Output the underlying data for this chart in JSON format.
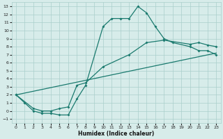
{
  "xlabel": "Humidex (Indice chaleur)",
  "line_color": "#1a7a6e",
  "bg_color": "#d7ecea",
  "grid_color": "#aacfcb",
  "xlim": [
    -0.5,
    23.5
  ],
  "ylim": [
    -1.5,
    13.5
  ],
  "xticks": [
    0,
    1,
    2,
    3,
    4,
    5,
    6,
    7,
    8,
    9,
    10,
    11,
    12,
    13,
    14,
    15,
    16,
    17,
    18,
    19,
    20,
    21,
    22,
    23
  ],
  "yticks": [
    -1,
    0,
    1,
    2,
    3,
    4,
    5,
    6,
    7,
    8,
    9,
    10,
    11,
    12,
    13
  ],
  "curve1_x": [
    0,
    1,
    2,
    3,
    4,
    5,
    6,
    7,
    8,
    10,
    11,
    12,
    13,
    14,
    15,
    16,
    17,
    18,
    20,
    21,
    22,
    23
  ],
  "curve1_y": [
    2.0,
    1.0,
    0.0,
    -0.3,
    -0.3,
    -0.5,
    -0.5,
    1.5,
    3.2,
    10.5,
    11.5,
    11.5,
    11.5,
    13.0,
    12.2,
    10.5,
    9.0,
    8.5,
    8.0,
    7.5,
    7.5,
    7.0
  ],
  "curve2_x": [
    0,
    2,
    3,
    4,
    5,
    6,
    7,
    8,
    10,
    13,
    15,
    17,
    20,
    21,
    22,
    23
  ],
  "curve2_y": [
    2.0,
    0.3,
    0.0,
    0.0,
    0.3,
    0.5,
    3.2,
    3.5,
    5.5,
    7.0,
    8.5,
    8.8,
    8.3,
    8.5,
    8.2,
    8.0
  ],
  "curve3_x": [
    0,
    23
  ],
  "curve3_y": [
    2.0,
    7.2
  ]
}
